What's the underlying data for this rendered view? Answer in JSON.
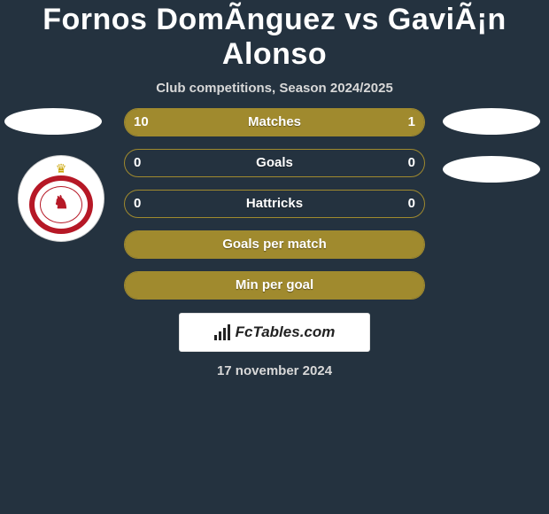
{
  "header": {
    "title": "Fornos DomÃ­nguez vs GaviÃ¡n Alonso",
    "subtitle": "Club competitions, Season 2024/2025"
  },
  "colors": {
    "background": "#24323f",
    "bar_fill": "#a08a2e",
    "bar_border": "#a08a2e",
    "text": "#ffffff",
    "subtext": "#d8d8d8",
    "crest_ring": "#b61826",
    "crest_crown": "#c9a300",
    "badge_bg": "#ffffff",
    "badge_text": "#222222"
  },
  "rows": [
    {
      "label": "Matches",
      "left": "10",
      "right": "1",
      "fill_left_pct": 79,
      "fill_right_pct": 21,
      "show_values": true
    },
    {
      "label": "Goals",
      "left": "0",
      "right": "0",
      "fill_left_pct": 0,
      "fill_right_pct": 0,
      "show_values": true
    },
    {
      "label": "Hattricks",
      "left": "0",
      "right": "0",
      "fill_left_pct": 0,
      "fill_right_pct": 0,
      "show_values": true
    },
    {
      "label": "Goals per match",
      "left": "",
      "right": "",
      "fill_left_pct": 100,
      "fill_right_pct": 0,
      "show_values": false
    },
    {
      "label": "Min per goal",
      "left": "",
      "right": "",
      "fill_left_pct": 100,
      "fill_right_pct": 0,
      "show_values": false
    }
  ],
  "badge": {
    "text": "FcTables.com"
  },
  "date": "17 november 2024",
  "crest": {
    "crown_glyph": "♛",
    "lion_glyph": "♞"
  }
}
